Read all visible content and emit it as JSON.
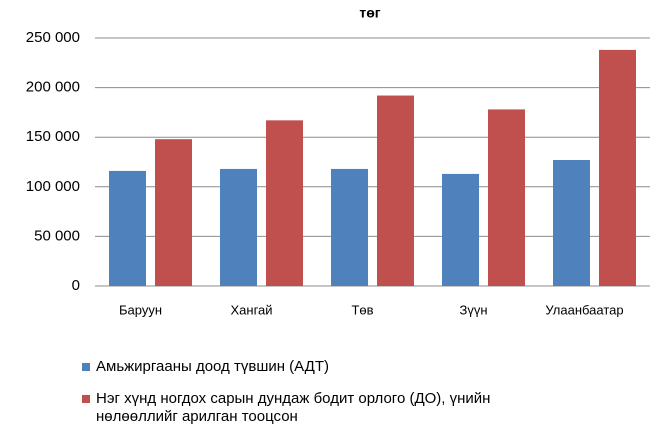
{
  "chart_data": {
    "type": "bar",
    "title": "төг",
    "categories": [
      "Баруун",
      "Хангай",
      "Төв",
      "Зүүн",
      "Улаанбаатар"
    ],
    "series": [
      {
        "name": "Амьжиргааны доод түвшин (АДТ)",
        "color": "#4f81bd",
        "values": [
          116000,
          118000,
          118000,
          113000,
          127000
        ]
      },
      {
        "name": "Нэг хүнд ногдох сарын дундаж бодит орлого (ДО), үнийн нөлөөллийг арилган тооцсон",
        "color": "#c0504d",
        "values": [
          148000,
          167000,
          192000,
          178000,
          238000
        ]
      }
    ],
    "ylim": [
      0,
      250000
    ],
    "yticks": [
      0,
      {
        "value": 50000,
        "label": "50 000"
      },
      {
        "value": 100000,
        "label": "100 000"
      },
      {
        "value": 150000,
        "label": "150 000"
      },
      {
        "value": 200000,
        "label": "200 000"
      },
      {
        "value": 250000,
        "label": "250 000"
      }
    ],
    "grid": true,
    "legend": "bottom"
  }
}
